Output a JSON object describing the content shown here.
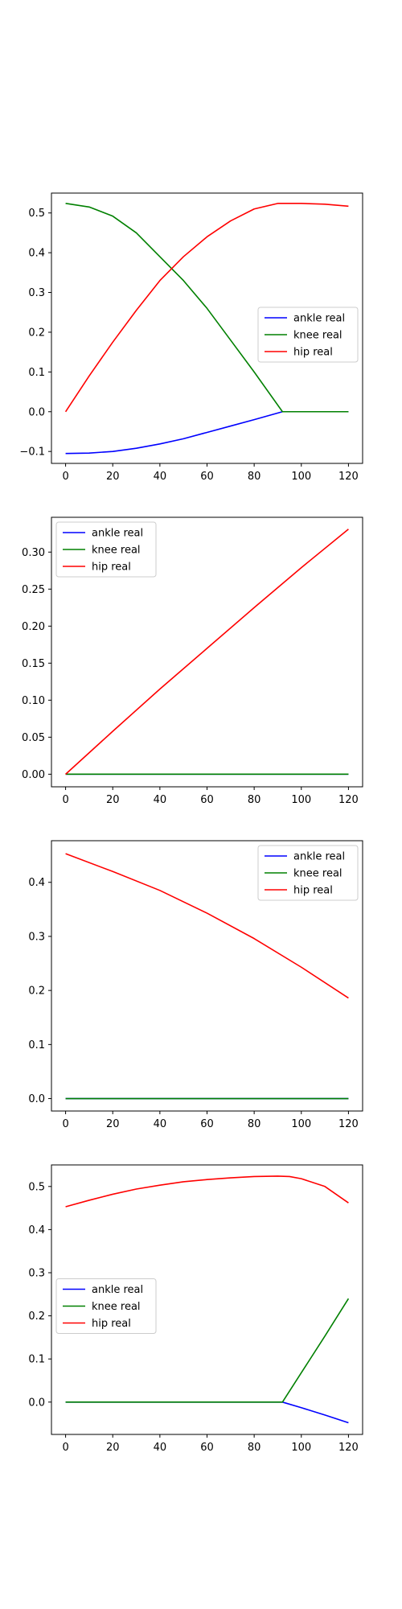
{
  "colors": {
    "ankle": "#0000ff",
    "knee": "#008000",
    "hip": "#ff0000"
  },
  "chart_data": [
    {
      "type": "line",
      "xlim": [
        -6,
        126
      ],
      "ylim": [
        -0.13,
        0.55
      ],
      "xticks": [
        "0",
        "20",
        "40",
        "60",
        "80",
        "100",
        "120"
      ],
      "yticks": [
        "−0.1",
        "0.0",
        "0.1",
        "0.2",
        "0.3",
        "0.4",
        "0.5"
      ],
      "ytick_values": [
        -0.1,
        0.0,
        0.1,
        0.2,
        0.3,
        0.4,
        0.5
      ],
      "legend_loc": "center-right",
      "series": [
        {
          "name": "ankle real",
          "color": "#0000ff",
          "points": [
            [
              0,
              -0.105
            ],
            [
              10,
              -0.104
            ],
            [
              20,
              -0.1
            ],
            [
              30,
              -0.092
            ],
            [
              40,
              -0.081
            ],
            [
              50,
              -0.068
            ],
            [
              60,
              -0.052
            ],
            [
              70,
              -0.036
            ],
            [
              80,
              -0.02
            ],
            [
              92,
              0.0
            ],
            [
              100,
              0.0
            ],
            [
              110,
              0.0
            ],
            [
              120,
              0.0
            ]
          ]
        },
        {
          "name": "knee real",
          "color": "#008000",
          "points": [
            [
              0,
              0.524
            ],
            [
              10,
              0.515
            ],
            [
              20,
              0.492
            ],
            [
              30,
              0.45
            ],
            [
              40,
              0.39
            ],
            [
              50,
              0.33
            ],
            [
              60,
              0.26
            ],
            [
              70,
              0.18
            ],
            [
              80,
              0.1
            ],
            [
              92,
              0.0
            ],
            [
              100,
              0.0
            ],
            [
              110,
              0.0
            ],
            [
              120,
              0.0
            ]
          ]
        },
        {
          "name": "hip real",
          "color": "#ff0000",
          "points": [
            [
              0,
              0.0
            ],
            [
              10,
              0.09
            ],
            [
              20,
              0.175
            ],
            [
              30,
              0.255
            ],
            [
              40,
              0.33
            ],
            [
              50,
              0.39
            ],
            [
              60,
              0.44
            ],
            [
              70,
              0.48
            ],
            [
              80,
              0.51
            ],
            [
              90,
              0.524
            ],
            [
              100,
              0.524
            ],
            [
              110,
              0.522
            ],
            [
              120,
              0.517
            ]
          ]
        }
      ]
    },
    {
      "type": "line",
      "xlim": [
        -6,
        126
      ],
      "ylim": [
        -0.017,
        0.347
      ],
      "xticks": [
        "0",
        "20",
        "40",
        "60",
        "80",
        "100",
        "120"
      ],
      "yticks": [
        "0.00",
        "0.05",
        "0.10",
        "0.15",
        "0.20",
        "0.25",
        "0.30"
      ],
      "ytick_values": [
        0.0,
        0.05,
        0.1,
        0.15,
        0.2,
        0.25,
        0.3
      ],
      "legend_loc": "upper-left",
      "series": [
        {
          "name": "ankle real",
          "color": "#0000ff",
          "points": [
            [
              0,
              0.0
            ],
            [
              120,
              0.0
            ]
          ]
        },
        {
          "name": "knee real",
          "color": "#008000",
          "points": [
            [
              0,
              0.0
            ],
            [
              120,
              0.0
            ]
          ]
        },
        {
          "name": "hip real",
          "color": "#ff0000",
          "points": [
            [
              0,
              0.0
            ],
            [
              20,
              0.058
            ],
            [
              40,
              0.115
            ],
            [
              60,
              0.17
            ],
            [
              80,
              0.225
            ],
            [
              100,
              0.279
            ],
            [
              120,
              0.331
            ]
          ]
        }
      ]
    },
    {
      "type": "line",
      "xlim": [
        -6,
        126
      ],
      "ylim": [
        -0.023,
        0.477
      ],
      "xticks": [
        "0",
        "20",
        "40",
        "60",
        "80",
        "100",
        "120"
      ],
      "yticks": [
        "0.0",
        "0.1",
        "0.2",
        "0.3",
        "0.4"
      ],
      "ytick_values": [
        0.0,
        0.1,
        0.2,
        0.3,
        0.4
      ],
      "legend_loc": "upper-right",
      "series": [
        {
          "name": "ankle real",
          "color": "#0000ff",
          "points": [
            [
              0,
              0.0
            ],
            [
              120,
              0.0
            ]
          ]
        },
        {
          "name": "knee real",
          "color": "#008000",
          "points": [
            [
              0,
              0.0
            ],
            [
              120,
              0.0
            ]
          ]
        },
        {
          "name": "hip real",
          "color": "#ff0000",
          "points": [
            [
              0,
              0.453
            ],
            [
              20,
              0.42
            ],
            [
              40,
              0.385
            ],
            [
              60,
              0.343
            ],
            [
              80,
              0.296
            ],
            [
              100,
              0.243
            ],
            [
              120,
              0.186
            ]
          ]
        }
      ]
    },
    {
      "type": "line",
      "xlim": [
        -6,
        126
      ],
      "ylim": [
        -0.075,
        0.55
      ],
      "xticks": [
        "0",
        "20",
        "40",
        "60",
        "80",
        "100",
        "120"
      ],
      "yticks": [
        "0.0",
        "0.1",
        "0.2",
        "0.3",
        "0.4",
        "0.5"
      ],
      "ytick_values": [
        0.0,
        0.1,
        0.2,
        0.3,
        0.4,
        0.5
      ],
      "legend_loc": "center-left",
      "series": [
        {
          "name": "ankle real",
          "color": "#0000ff",
          "points": [
            [
              0,
              0.0
            ],
            [
              92,
              0.0
            ],
            [
              100,
              -0.013
            ],
            [
              110,
              -0.03
            ],
            [
              120,
              -0.048
            ]
          ]
        },
        {
          "name": "knee real",
          "color": "#008000",
          "points": [
            [
              0,
              0.0
            ],
            [
              92,
              0.0
            ],
            [
              100,
              0.068
            ],
            [
              110,
              0.153
            ],
            [
              120,
              0.24
            ]
          ]
        },
        {
          "name": "hip real",
          "color": "#ff0000",
          "points": [
            [
              0,
              0.453
            ],
            [
              10,
              0.468
            ],
            [
              20,
              0.482
            ],
            [
              30,
              0.494
            ],
            [
              40,
              0.503
            ],
            [
              50,
              0.511
            ],
            [
              60,
              0.516
            ],
            [
              70,
              0.52
            ],
            [
              80,
              0.523
            ],
            [
              90,
              0.524
            ],
            [
              95,
              0.523
            ],
            [
              100,
              0.518
            ],
            [
              110,
              0.5
            ],
            [
              120,
              0.462
            ]
          ]
        }
      ]
    }
  ]
}
